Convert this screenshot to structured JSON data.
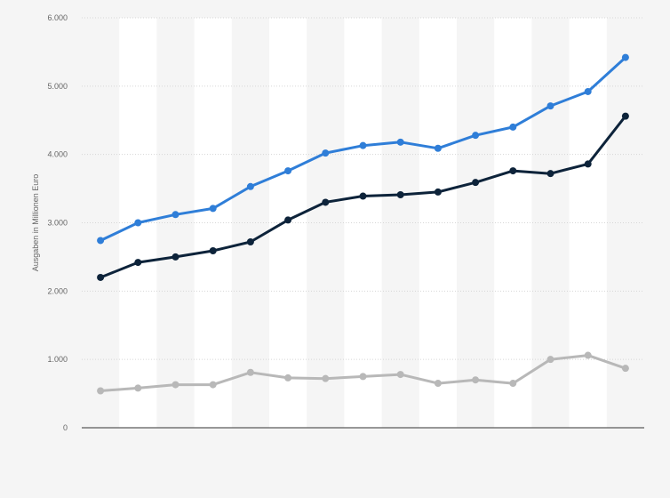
{
  "chart_data": {
    "type": "line",
    "title": "",
    "xlabel": "",
    "ylabel": "Ausgaben in Millionen Euro",
    "ylim": [
      0,
      6000
    ],
    "yticks": [
      0,
      1000,
      2000,
      3000,
      4000,
      5000,
      6000
    ],
    "ytick_labels": [
      "0",
      "1.000",
      "2.000",
      "3.000",
      "4.000",
      "5.000",
      "6.000"
    ],
    "x": [
      1,
      2,
      3,
      4,
      5,
      6,
      7,
      8,
      9,
      10,
      11,
      12,
      13,
      14,
      15
    ],
    "grid": true,
    "series": [
      {
        "color": "#2f7ed8",
        "values": [
          2740,
          3000,
          3120,
          3210,
          3530,
          3760,
          4020,
          4130,
          4180,
          4090,
          4280,
          4400,
          4710,
          4920,
          5420
        ]
      },
      {
        "color": "#0d233a",
        "values": [
          2200,
          2420,
          2500,
          2590,
          2720,
          3040,
          3300,
          3390,
          3410,
          3450,
          3590,
          3760,
          3720,
          3860,
          4560
        ]
      },
      {
        "color": "#b8b8b8",
        "values": [
          540,
          580,
          630,
          630,
          810,
          730,
          720,
          750,
          780,
          650,
          700,
          650,
          1000,
          1060,
          870
        ]
      }
    ]
  }
}
